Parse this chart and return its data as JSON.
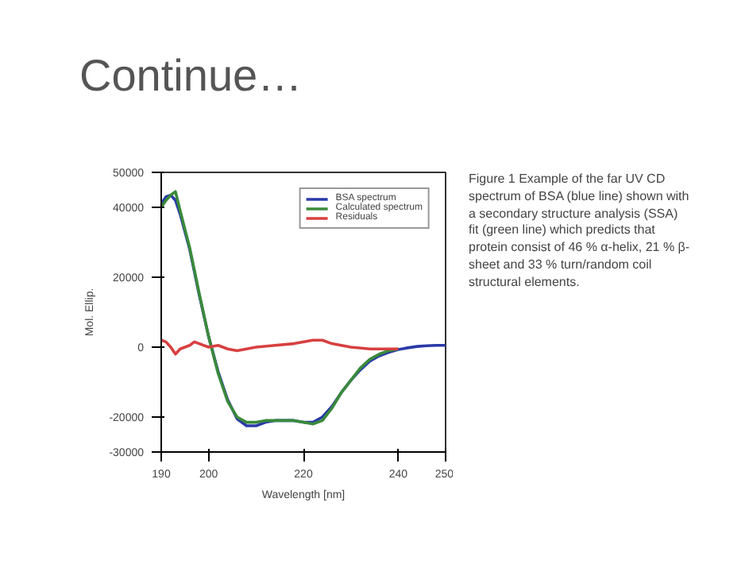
{
  "chart_data": {
    "type": "line",
    "title": "Continue…",
    "xlabel": "Wavelength [nm]",
    "ylabel": "Mol. Ellip.",
    "annotations": [
      "Figure 1 Example of the far UV CD spectrum of BSA (blue line) shown with a secondary structure analysis (SSA) fit (green line) which predicts that protein consist of 46 % α-helix, 21 % β-sheet and 33 % turn/random coil structural elements."
    ],
    "xlim": [
      190,
      250
    ],
    "xticks": [
      190,
      200,
      220,
      240,
      250
    ],
    "ylim": [
      -30000,
      50000
    ],
    "yticks": [
      -30000,
      -20000,
      0,
      20000,
      40000,
      50000
    ],
    "grid": false,
    "legend": "top right",
    "line_style": "solid",
    "marker": "none",
    "series": [
      {
        "name": "BSA spectrum",
        "color": "#2a3aa8",
        "x": [
          190,
          191,
          192,
          193,
          194,
          196,
          198,
          200,
          202,
          204,
          206,
          208,
          210,
          212,
          214,
          216,
          218,
          220,
          222,
          224,
          226,
          228,
          230,
          232,
          234,
          236,
          238,
          240,
          242,
          244,
          246,
          248,
          250
        ],
        "values": [
          41000,
          43000,
          43500,
          42000,
          38000,
          28000,
          15000,
          3000,
          -7000,
          -15000,
          -20500,
          -22500,
          -22500,
          -21500,
          -21000,
          -21000,
          -21000,
          -21500,
          -21500,
          -20000,
          -17000,
          -13000,
          -9500,
          -6500,
          -4000,
          -2500,
          -1500,
          -700,
          -200,
          200,
          400,
          500,
          500
        ]
      },
      {
        "name": "Calculated spectrum",
        "color": "#3a8a3a",
        "x": [
          190,
          191,
          192,
          193,
          194,
          196,
          198,
          200,
          202,
          204,
          206,
          208,
          210,
          212,
          214,
          216,
          218,
          220,
          222,
          224,
          226,
          228,
          230,
          232,
          234,
          236,
          238,
          240
        ],
        "values": [
          40000,
          42000,
          43500,
          44500,
          39000,
          28500,
          15500,
          3000,
          -7500,
          -15500,
          -20000,
          -21500,
          -21500,
          -21000,
          -21000,
          -21000,
          -21000,
          -21500,
          -22000,
          -21000,
          -17500,
          -13000,
          -9500,
          -6000,
          -3500,
          -2000,
          -1000,
          -500
        ]
      },
      {
        "name": "Residuals",
        "color": "#d84040",
        "x": [
          190,
          191,
          192,
          193,
          194,
          196,
          197,
          198,
          200,
          202,
          204,
          206,
          208,
          210,
          214,
          218,
          222,
          224,
          226,
          230,
          234,
          240
        ],
        "values": [
          2000,
          1500,
          0,
          -2000,
          -500,
          500,
          1500,
          1000,
          0,
          500,
          -500,
          -1000,
          -500,
          0,
          500,
          1000,
          2000,
          2000,
          1000,
          0,
          -500,
          -500
        ]
      }
    ]
  }
}
